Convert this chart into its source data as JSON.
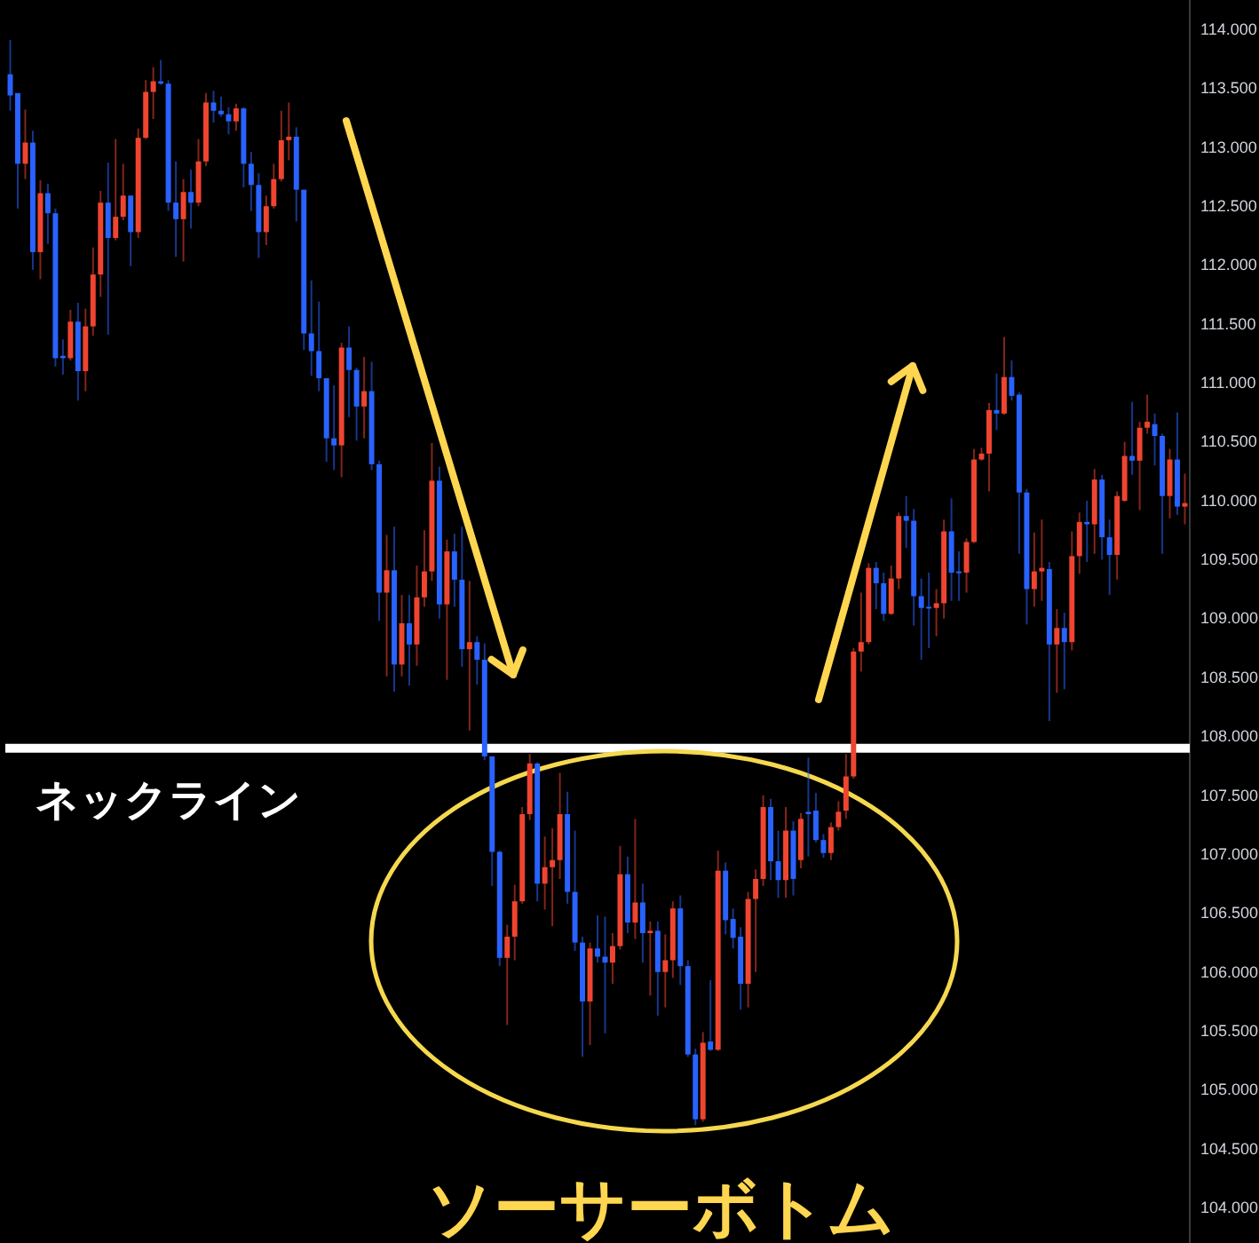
{
  "chart_data": {
    "type": "candlestick",
    "tick_labels": "y",
    "categories": [
      null,
      null,
      null,
      null,
      null,
      null,
      null,
      null,
      null,
      null,
      null,
      null,
      null,
      null,
      null,
      null,
      null,
      null,
      null,
      null,
      null,
      null,
      null,
      null,
      null,
      null,
      null,
      null,
      null,
      null,
      null,
      null,
      null,
      null,
      null,
      null,
      null,
      null,
      null,
      null,
      null,
      null,
      null,
      null,
      null,
      null,
      null,
      null,
      null,
      null,
      null,
      null,
      null,
      null,
      null,
      null,
      null,
      null,
      null,
      null,
      null,
      null,
      null,
      null,
      null,
      null,
      null,
      null,
      null,
      null,
      null,
      null,
      null,
      null,
      null,
      null,
      null,
      null,
      null,
      null,
      null,
      null,
      null,
      null,
      null,
      null,
      null,
      null,
      null,
      null,
      null,
      null,
      null,
      null,
      null,
      null,
      null,
      null,
      null,
      null,
      null,
      null,
      null,
      null,
      null,
      null,
      null,
      null,
      null,
      null,
      null,
      null,
      null,
      null,
      null,
      null,
      null,
      null,
      null,
      null,
      null,
      null,
      null,
      null,
      null,
      null,
      null,
      null,
      null,
      null,
      null,
      null,
      null,
      null,
      null,
      null,
      null,
      null,
      null,
      null,
      null,
      null,
      null,
      null,
      null,
      null,
      null,
      null,
      null,
      null,
      null,
      null,
      null,
      null,
      null,
      null,
      null
    ],
    "ohlc": [
      [
        113.62,
        113.91,
        113.31,
        113.44
      ],
      [
        113.46,
        113.46,
        112.48,
        112.86
      ],
      [
        112.86,
        113.32,
        112.73,
        113.04
      ],
      [
        113.04,
        113.14,
        111.96,
        112.11
      ],
      [
        112.11,
        112.72,
        111.88,
        112.61
      ],
      [
        112.61,
        112.69,
        112.18,
        112.44
      ],
      [
        112.44,
        112.48,
        111.14,
        111.21
      ],
      [
        111.23,
        111.37,
        111.07,
        111.21
      ],
      [
        111.21,
        111.62,
        111.19,
        111.52
      ],
      [
        111.52,
        111.68,
        110.85,
        111.1
      ],
      [
        111.1,
        111.63,
        110.93,
        111.48
      ],
      [
        111.48,
        112.15,
        111.4,
        111.92
      ],
      [
        111.92,
        112.63,
        111.73,
        112.53
      ],
      [
        112.53,
        112.87,
        111.41,
        112.23
      ],
      [
        112.23,
        113.07,
        112.21,
        112.41
      ],
      [
        112.41,
        112.86,
        112.38,
        112.59
      ],
      [
        112.59,
        112.59,
        111.99,
        112.28
      ],
      [
        112.28,
        113.16,
        112.23,
        113.08
      ],
      [
        113.08,
        113.57,
        113.07,
        113.47
      ],
      [
        113.47,
        113.68,
        113.24,
        113.56
      ],
      [
        113.56,
        113.74,
        113.53,
        113.54
      ],
      [
        113.54,
        113.57,
        112.46,
        112.53
      ],
      [
        112.53,
        112.88,
        112.07,
        112.39
      ],
      [
        112.39,
        112.73,
        112.03,
        112.62
      ],
      [
        112.62,
        112.81,
        112.31,
        112.53
      ],
      [
        112.53,
        113.07,
        112.5,
        112.88
      ],
      [
        112.88,
        113.46,
        112.84,
        113.38
      ],
      [
        113.38,
        113.48,
        113.21,
        113.31
      ],
      [
        113.31,
        113.43,
        113.26,
        113.28
      ],
      [
        113.28,
        113.34,
        113.11,
        113.22
      ],
      [
        113.22,
        113.37,
        113.14,
        113.33
      ],
      [
        113.33,
        113.34,
        112.66,
        112.86
      ],
      [
        112.86,
        112.96,
        112.46,
        112.68
      ],
      [
        112.68,
        112.78,
        112.06,
        112.28
      ],
      [
        112.28,
        112.59,
        112.17,
        112.5
      ],
      [
        112.5,
        112.86,
        112.48,
        112.73
      ],
      [
        112.73,
        113.31,
        112.71,
        113.06
      ],
      [
        113.06,
        113.38,
        112.89,
        113.09
      ],
      [
        113.09,
        113.17,
        112.37,
        112.64
      ],
      [
        112.64,
        112.64,
        111.28,
        111.42
      ],
      [
        111.42,
        111.87,
        111.06,
        111.27
      ],
      [
        111.27,
        111.69,
        110.93,
        111.04
      ],
      [
        111.04,
        111.04,
        110.33,
        110.53
      ],
      [
        110.53,
        110.98,
        110.26,
        110.47
      ],
      [
        110.47,
        111.34,
        110.2,
        111.3
      ],
      [
        111.3,
        111.48,
        110.71,
        111.11
      ],
      [
        111.11,
        111.13,
        110.51,
        110.8
      ],
      [
        110.8,
        111.22,
        110.53,
        110.93
      ],
      [
        110.93,
        111.18,
        110.26,
        110.31
      ],
      [
        110.31,
        110.34,
        108.98,
        109.22
      ],
      [
        109.22,
        109.71,
        108.51,
        109.41
      ],
      [
        109.41,
        109.78,
        108.38,
        108.61
      ],
      [
        108.61,
        109.2,
        108.51,
        108.96
      ],
      [
        108.96,
        109.2,
        108.43,
        108.78
      ],
      [
        108.78,
        109.45,
        108.6,
        109.18
      ],
      [
        109.18,
        109.75,
        109.1,
        109.4
      ],
      [
        109.4,
        110.49,
        109.32,
        110.17
      ],
      [
        110.17,
        110.29,
        109.0,
        109.12
      ],
      [
        109.12,
        109.67,
        108.48,
        109.57
      ],
      [
        109.57,
        109.72,
        109.1,
        109.33
      ],
      [
        109.33,
        109.78,
        108.59,
        108.74
      ],
      [
        108.74,
        109.32,
        108.05,
        108.8
      ],
      [
        108.8,
        108.85,
        108.44,
        108.65
      ],
      [
        108.65,
        108.79,
        107.8,
        107.83
      ],
      [
        107.83,
        107.83,
        106.73,
        107.02
      ],
      [
        107.02,
        107.03,
        106.05,
        106.12
      ],
      [
        106.12,
        106.4,
        105.55,
        106.3
      ],
      [
        106.3,
        106.74,
        106.1,
        106.6
      ],
      [
        106.6,
        107.4,
        106.58,
        107.34
      ],
      [
        107.34,
        107.85,
        107.29,
        107.77
      ],
      [
        107.77,
        107.78,
        106.6,
        106.75
      ],
      [
        106.75,
        107.15,
        106.53,
        106.89
      ],
      [
        106.89,
        107.22,
        106.39,
        106.95
      ],
      [
        106.95,
        107.69,
        106.79,
        107.34
      ],
      [
        107.34,
        107.53,
        106.58,
        106.68
      ],
      [
        106.68,
        107.2,
        106.18,
        106.25
      ],
      [
        106.25,
        106.3,
        105.28,
        105.75
      ],
      [
        105.75,
        106.25,
        105.38,
        106.2
      ],
      [
        106.2,
        106.48,
        106.08,
        106.13
      ],
      [
        106.13,
        106.47,
        105.48,
        106.08
      ],
      [
        106.08,
        106.33,
        105.9,
        106.22
      ],
      [
        106.22,
        107.07,
        106.19,
        106.83
      ],
      [
        106.83,
        106.98,
        106.33,
        106.42
      ],
      [
        106.42,
        107.3,
        106.28,
        106.59
      ],
      [
        106.59,
        106.75,
        106.08,
        106.33
      ],
      [
        106.33,
        106.43,
        105.8,
        106.35
      ],
      [
        106.35,
        106.43,
        105.63,
        106.0
      ],
      [
        106.0,
        106.32,
        105.7,
        106.1
      ],
      [
        106.1,
        106.6,
        105.95,
        106.54
      ],
      [
        106.54,
        106.65,
        105.89,
        106.05
      ],
      [
        106.05,
        106.1,
        105.28,
        105.3
      ],
      [
        105.3,
        105.35,
        104.7,
        104.75
      ],
      [
        104.75,
        105.49,
        104.73,
        105.4
      ],
      [
        105.41,
        105.93,
        105.33,
        105.34
      ],
      [
        105.34,
        107.03,
        105.33,
        106.86
      ],
      [
        106.86,
        106.93,
        106.32,
        106.44
      ],
      [
        106.45,
        106.54,
        106.2,
        106.29
      ],
      [
        106.3,
        106.38,
        105.68,
        105.9
      ],
      [
        105.9,
        106.68,
        105.7,
        106.62
      ],
      [
        106.62,
        106.87,
        106.0,
        106.79
      ],
      [
        106.79,
        107.5,
        106.73,
        107.4
      ],
      [
        107.4,
        107.47,
        106.78,
        106.94
      ],
      [
        106.94,
        107.2,
        106.63,
        106.78
      ],
      [
        106.78,
        107.4,
        106.63,
        107.2
      ],
      [
        107.2,
        107.28,
        106.65,
        106.79
      ],
      [
        106.95,
        107.35,
        106.88,
        107.3
      ],
      [
        107.36,
        107.82,
        106.98,
        107.34
      ],
      [
        107.37,
        107.52,
        107.1,
        107.12
      ],
      [
        107.12,
        107.17,
        106.97,
        107.01
      ],
      [
        107.01,
        107.27,
        106.95,
        107.23
      ],
      [
        107.23,
        107.45,
        107.2,
        107.36
      ],
      [
        107.37,
        107.85,
        107.3,
        107.66
      ],
      [
        107.66,
        108.75,
        107.64,
        108.72
      ],
      [
        108.72,
        109.22,
        108.55,
        108.8
      ],
      [
        108.8,
        109.47,
        108.78,
        109.43
      ],
      [
        109.43,
        109.48,
        109.08,
        109.3
      ],
      [
        109.3,
        109.39,
        108.98,
        109.04
      ],
      [
        109.04,
        109.45,
        109.03,
        109.34
      ],
      [
        109.34,
        109.9,
        109.25,
        109.87
      ],
      [
        109.87,
        110.04,
        109.6,
        109.83
      ],
      [
        109.83,
        109.93,
        108.94,
        109.19
      ],
      [
        109.19,
        109.34,
        108.65,
        109.09
      ],
      [
        109.1,
        109.39,
        108.75,
        109.09
      ],
      [
        109.09,
        109.25,
        108.85,
        109.13
      ],
      [
        109.13,
        109.84,
        109.0,
        109.74
      ],
      [
        109.74,
        110.02,
        109.15,
        109.39
      ],
      [
        109.4,
        109.57,
        109.15,
        109.39
      ],
      [
        109.39,
        109.68,
        109.22,
        109.65
      ],
      [
        109.65,
        110.44,
        109.64,
        110.35
      ],
      [
        110.35,
        110.45,
        110.34,
        110.4
      ],
      [
        110.4,
        110.83,
        110.08,
        110.77
      ],
      [
        110.77,
        111.08,
        110.6,
        110.74
      ],
      [
        110.74,
        111.39,
        110.73,
        111.05
      ],
      [
        111.05,
        111.19,
        110.85,
        110.89
      ],
      [
        110.9,
        110.92,
        109.55,
        110.07
      ],
      [
        110.07,
        110.1,
        108.95,
        109.25
      ],
      [
        109.25,
        109.73,
        109.1,
        109.4
      ],
      [
        109.4,
        109.84,
        109.15,
        109.43
      ],
      [
        109.42,
        109.48,
        108.13,
        108.78
      ],
      [
        108.78,
        109.08,
        108.37,
        108.92
      ],
      [
        108.92,
        109.05,
        108.4,
        108.8
      ],
      [
        108.8,
        109.74,
        108.73,
        109.53
      ],
      [
        109.53,
        109.9,
        109.38,
        109.82
      ],
      [
        109.82,
        110.0,
        109.48,
        109.8
      ],
      [
        109.8,
        110.27,
        109.55,
        110.18
      ],
      [
        110.18,
        110.22,
        109.5,
        109.69
      ],
      [
        109.69,
        109.84,
        109.2,
        109.54
      ],
      [
        109.54,
        110.08,
        109.33,
        110.04
      ],
      [
        110.0,
        110.5,
        109.99,
        110.38
      ],
      [
        110.38,
        110.84,
        110.22,
        110.34
      ],
      [
        110.34,
        110.67,
        109.92,
        110.62
      ],
      [
        110.62,
        110.9,
        110.57,
        110.67
      ],
      [
        110.65,
        110.74,
        110.3,
        110.55
      ],
      [
        110.55,
        110.57,
        109.55,
        110.04
      ],
      [
        110.04,
        110.44,
        109.85,
        110.35
      ],
      [
        110.35,
        110.75,
        109.88,
        109.95
      ],
      [
        109.95,
        110.23,
        109.8,
        109.98
      ]
    ],
    "colors": [
      "#2962ff",
      "#2962ff",
      "#ef4430",
      "#2962ff",
      "#ef4430",
      "#2962ff",
      "#2962ff",
      "#2962ff",
      "#ef4430",
      "#2962ff",
      "#ef4430",
      "#ef4430",
      "#ef4430",
      "#2962ff",
      "#ef4430",
      "#ef4430",
      "#2962ff",
      "#ef4430",
      "#ef4430",
      "#ef4430",
      "#2962ff",
      "#2962ff",
      "#2962ff",
      "#ef4430",
      "#2962ff",
      "#ef4430",
      "#ef4430",
      "#2962ff",
      "#2962ff",
      "#2962ff",
      "#ef4430",
      "#2962ff",
      "#2962ff",
      "#2962ff",
      "#ef4430",
      "#ef4430",
      "#ef4430",
      "#ef4430",
      "#2962ff",
      "#2962ff",
      "#2962ff",
      "#2962ff",
      "#2962ff",
      "#2962ff",
      "#ef4430",
      "#2962ff",
      "#2962ff",
      "#ef4430",
      "#2962ff",
      "#2962ff",
      "#ef4430",
      "#2962ff",
      "#ef4430",
      "#2962ff",
      "#ef4430",
      "#ef4430",
      "#ef4430",
      "#2962ff",
      "#ef4430",
      "#2962ff",
      "#2962ff",
      "#ef4430",
      "#2962ff",
      "#2962ff",
      "#2962ff",
      "#2962ff",
      "#ef4430",
      "#ef4430",
      "#ef4430",
      "#ef4430",
      "#2962ff",
      "#ef4430",
      "#ef4430",
      "#ef4430",
      "#2962ff",
      "#2962ff",
      "#2962ff",
      "#ef4430",
      "#2962ff",
      "#2962ff",
      "#ef4430",
      "#ef4430",
      "#2962ff",
      "#ef4430",
      "#2962ff",
      "#ef4430",
      "#2962ff",
      "#ef4430",
      "#ef4430",
      "#2962ff",
      "#2962ff",
      "#2962ff",
      "#ef4430",
      "#2962ff",
      "#ef4430",
      "#2962ff",
      "#2962ff",
      "#2962ff",
      "#ef4430",
      "#ef4430",
      "#ef4430",
      "#2962ff",
      "#2962ff",
      "#ef4430",
      "#2962ff",
      "#ef4430",
      "#2962ff",
      "#2962ff",
      "#2962ff",
      "#ef4430",
      "#ef4430",
      "#ef4430",
      "#ef4430",
      "#ef4430",
      "#ef4430",
      "#2962ff",
      "#2962ff",
      "#ef4430",
      "#ef4430",
      "#2962ff",
      "#2962ff",
      "#2962ff",
      "#2962ff",
      "#ef4430",
      "#ef4430",
      "#2962ff",
      "#2962ff",
      "#ef4430",
      "#ef4430",
      "#ef4430",
      "#ef4430",
      "#2962ff",
      "#ef4430",
      "#2962ff",
      "#2962ff",
      "#2962ff",
      "#ef4430",
      "#ef4430",
      "#2962ff",
      "#ef4430",
      "#2962ff",
      "#ef4430",
      "#ef4430",
      "#2962ff",
      "#ef4430",
      "#2962ff",
      "#2962ff",
      "#ef4430",
      "#ef4430",
      "#2962ff",
      "#ef4430",
      "#ef4430",
      "#2962ff",
      "#2962ff",
      "#ef4430",
      "#2962ff",
      "#ef4430"
    ],
    "ylim": [
      103.7,
      114.25
    ],
    "yticks": [
      {
        "value": 104,
        "label": "104.000"
      },
      {
        "value": 104.5,
        "label": "104.500"
      },
      {
        "value": 105,
        "label": "105.000"
      },
      {
        "value": 105.5,
        "label": "105.500"
      },
      {
        "value": 106,
        "label": "106.000"
      },
      {
        "value": 106.5,
        "label": "106.500"
      },
      {
        "value": 107,
        "label": "107.000"
      },
      {
        "value": 107.5,
        "label": "107.500"
      },
      {
        "value": 108,
        "label": "108.000"
      },
      {
        "value": 108.5,
        "label": "108.500"
      },
      {
        "value": 109,
        "label": "109.000"
      },
      {
        "value": 109.5,
        "label": "109.500"
      },
      {
        "value": 110,
        "label": "110.000"
      },
      {
        "value": 110.5,
        "label": "110.500"
      },
      {
        "value": 111,
        "label": "111.000"
      },
      {
        "value": 111.5,
        "label": "111.500"
      },
      {
        "value": 112,
        "label": "112.000"
      },
      {
        "value": 112.5,
        "label": "112.500"
      },
      {
        "value": 113,
        "label": "113.000"
      },
      {
        "value": 113.5,
        "label": "113.500"
      },
      {
        "value": 114,
        "label": "114.000"
      }
    ],
    "ref_lines": [
      {
        "axis": "y",
        "value": 107.9,
        "label": "ネックライン",
        "color": "#ffffff"
      }
    ],
    "annotations": [
      "ソーサーボトム"
    ]
  }
}
